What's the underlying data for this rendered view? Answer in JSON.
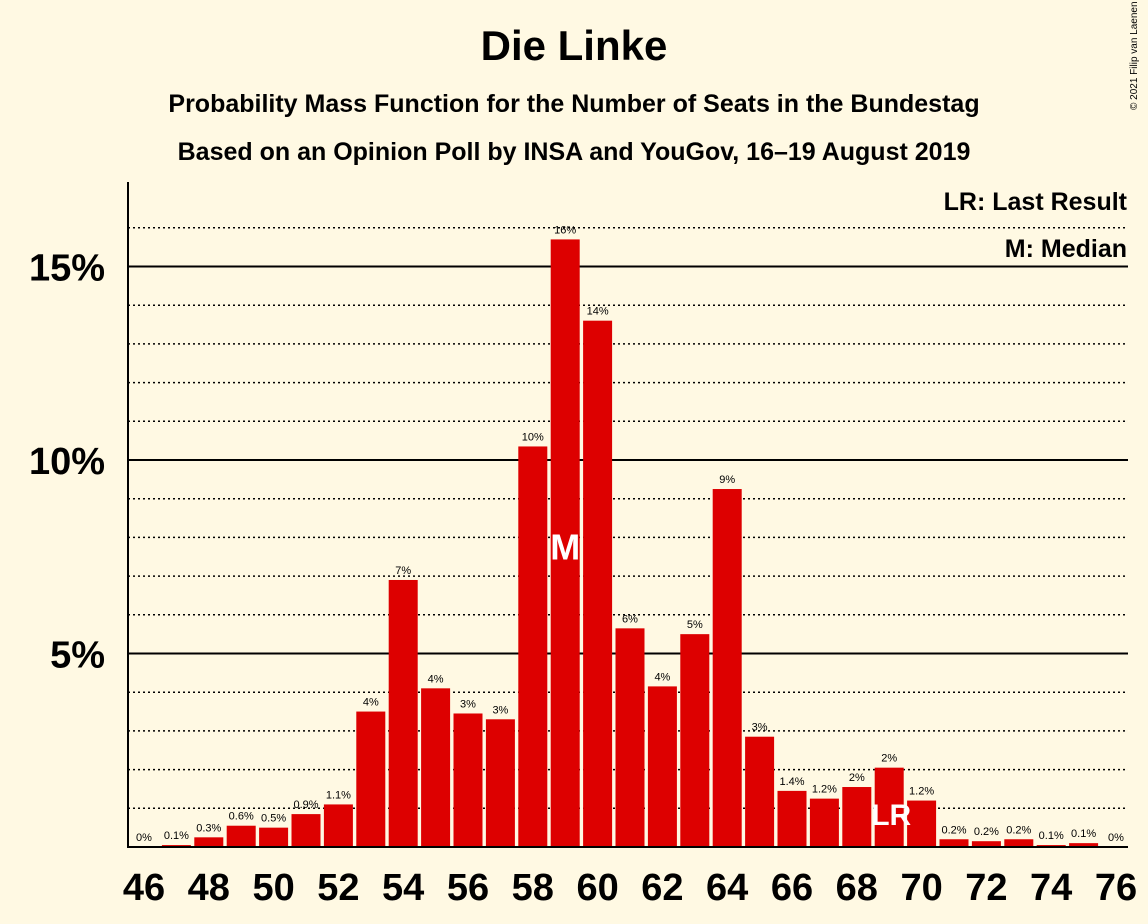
{
  "title": "Die Linke",
  "subtitle1": "Probability Mass Function for the Number of Seats in the Bundestag",
  "subtitle2": "Based on an Opinion Poll by INSA and YouGov, 16–19 August 2019",
  "copyright": "© 2021 Filip van Laenen",
  "legend": {
    "last_result": "LR: Last Result",
    "median": "M: Median"
  },
  "colors": {
    "background": "#FFF9E3",
    "bar": "#DD0000",
    "marker_text": "#FFFFFF"
  },
  "chart_data": {
    "type": "bar",
    "title": "Die Linke",
    "xlabel": "",
    "ylabel": "",
    "ylim": [
      0,
      17
    ],
    "y_ticks": [
      5,
      10,
      15
    ],
    "y_tick_labels": [
      "5%",
      "10%",
      "15%"
    ],
    "x_tick_labels": [
      "46",
      "48",
      "50",
      "52",
      "54",
      "56",
      "58",
      "60",
      "62",
      "64",
      "66",
      "68",
      "70",
      "72",
      "74",
      "76"
    ],
    "categories": [
      46,
      47,
      48,
      49,
      50,
      51,
      52,
      53,
      54,
      55,
      56,
      57,
      58,
      59,
      60,
      61,
      62,
      63,
      64,
      65,
      66,
      67,
      68,
      69,
      70,
      71,
      72,
      73,
      74,
      75,
      76
    ],
    "values": [
      0,
      0.05,
      0.25,
      0.55,
      0.5,
      0.85,
      1.1,
      3.5,
      6.9,
      4.1,
      3.45,
      3.3,
      10.35,
      15.7,
      13.6,
      5.65,
      4.15,
      5.5,
      9.25,
      2.85,
      1.45,
      1.25,
      1.55,
      2.05,
      1.2,
      0.2,
      0.15,
      0.2,
      0.05,
      0.1,
      0
    ],
    "labels": [
      "0%",
      "0.1%",
      "0.3%",
      "0.6%",
      "0.5%",
      "0.9%",
      "1.1%",
      "4%",
      "7%",
      "4%",
      "3%",
      "3%",
      "10%",
      "16%",
      "14%",
      "6%",
      "4%",
      "5%",
      "9%",
      "3%",
      "1.4%",
      "1.2%",
      "2%",
      "2%",
      "1.2%",
      "0.2%",
      "0.2%",
      "0.2%",
      "0.1%",
      "0.1%",
      "0%"
    ],
    "median_seat": 59,
    "median_marker": "M",
    "last_result_seat": 69,
    "last_result_marker": "LR",
    "grid": "solid at 5% steps, dotted at 1% steps"
  }
}
